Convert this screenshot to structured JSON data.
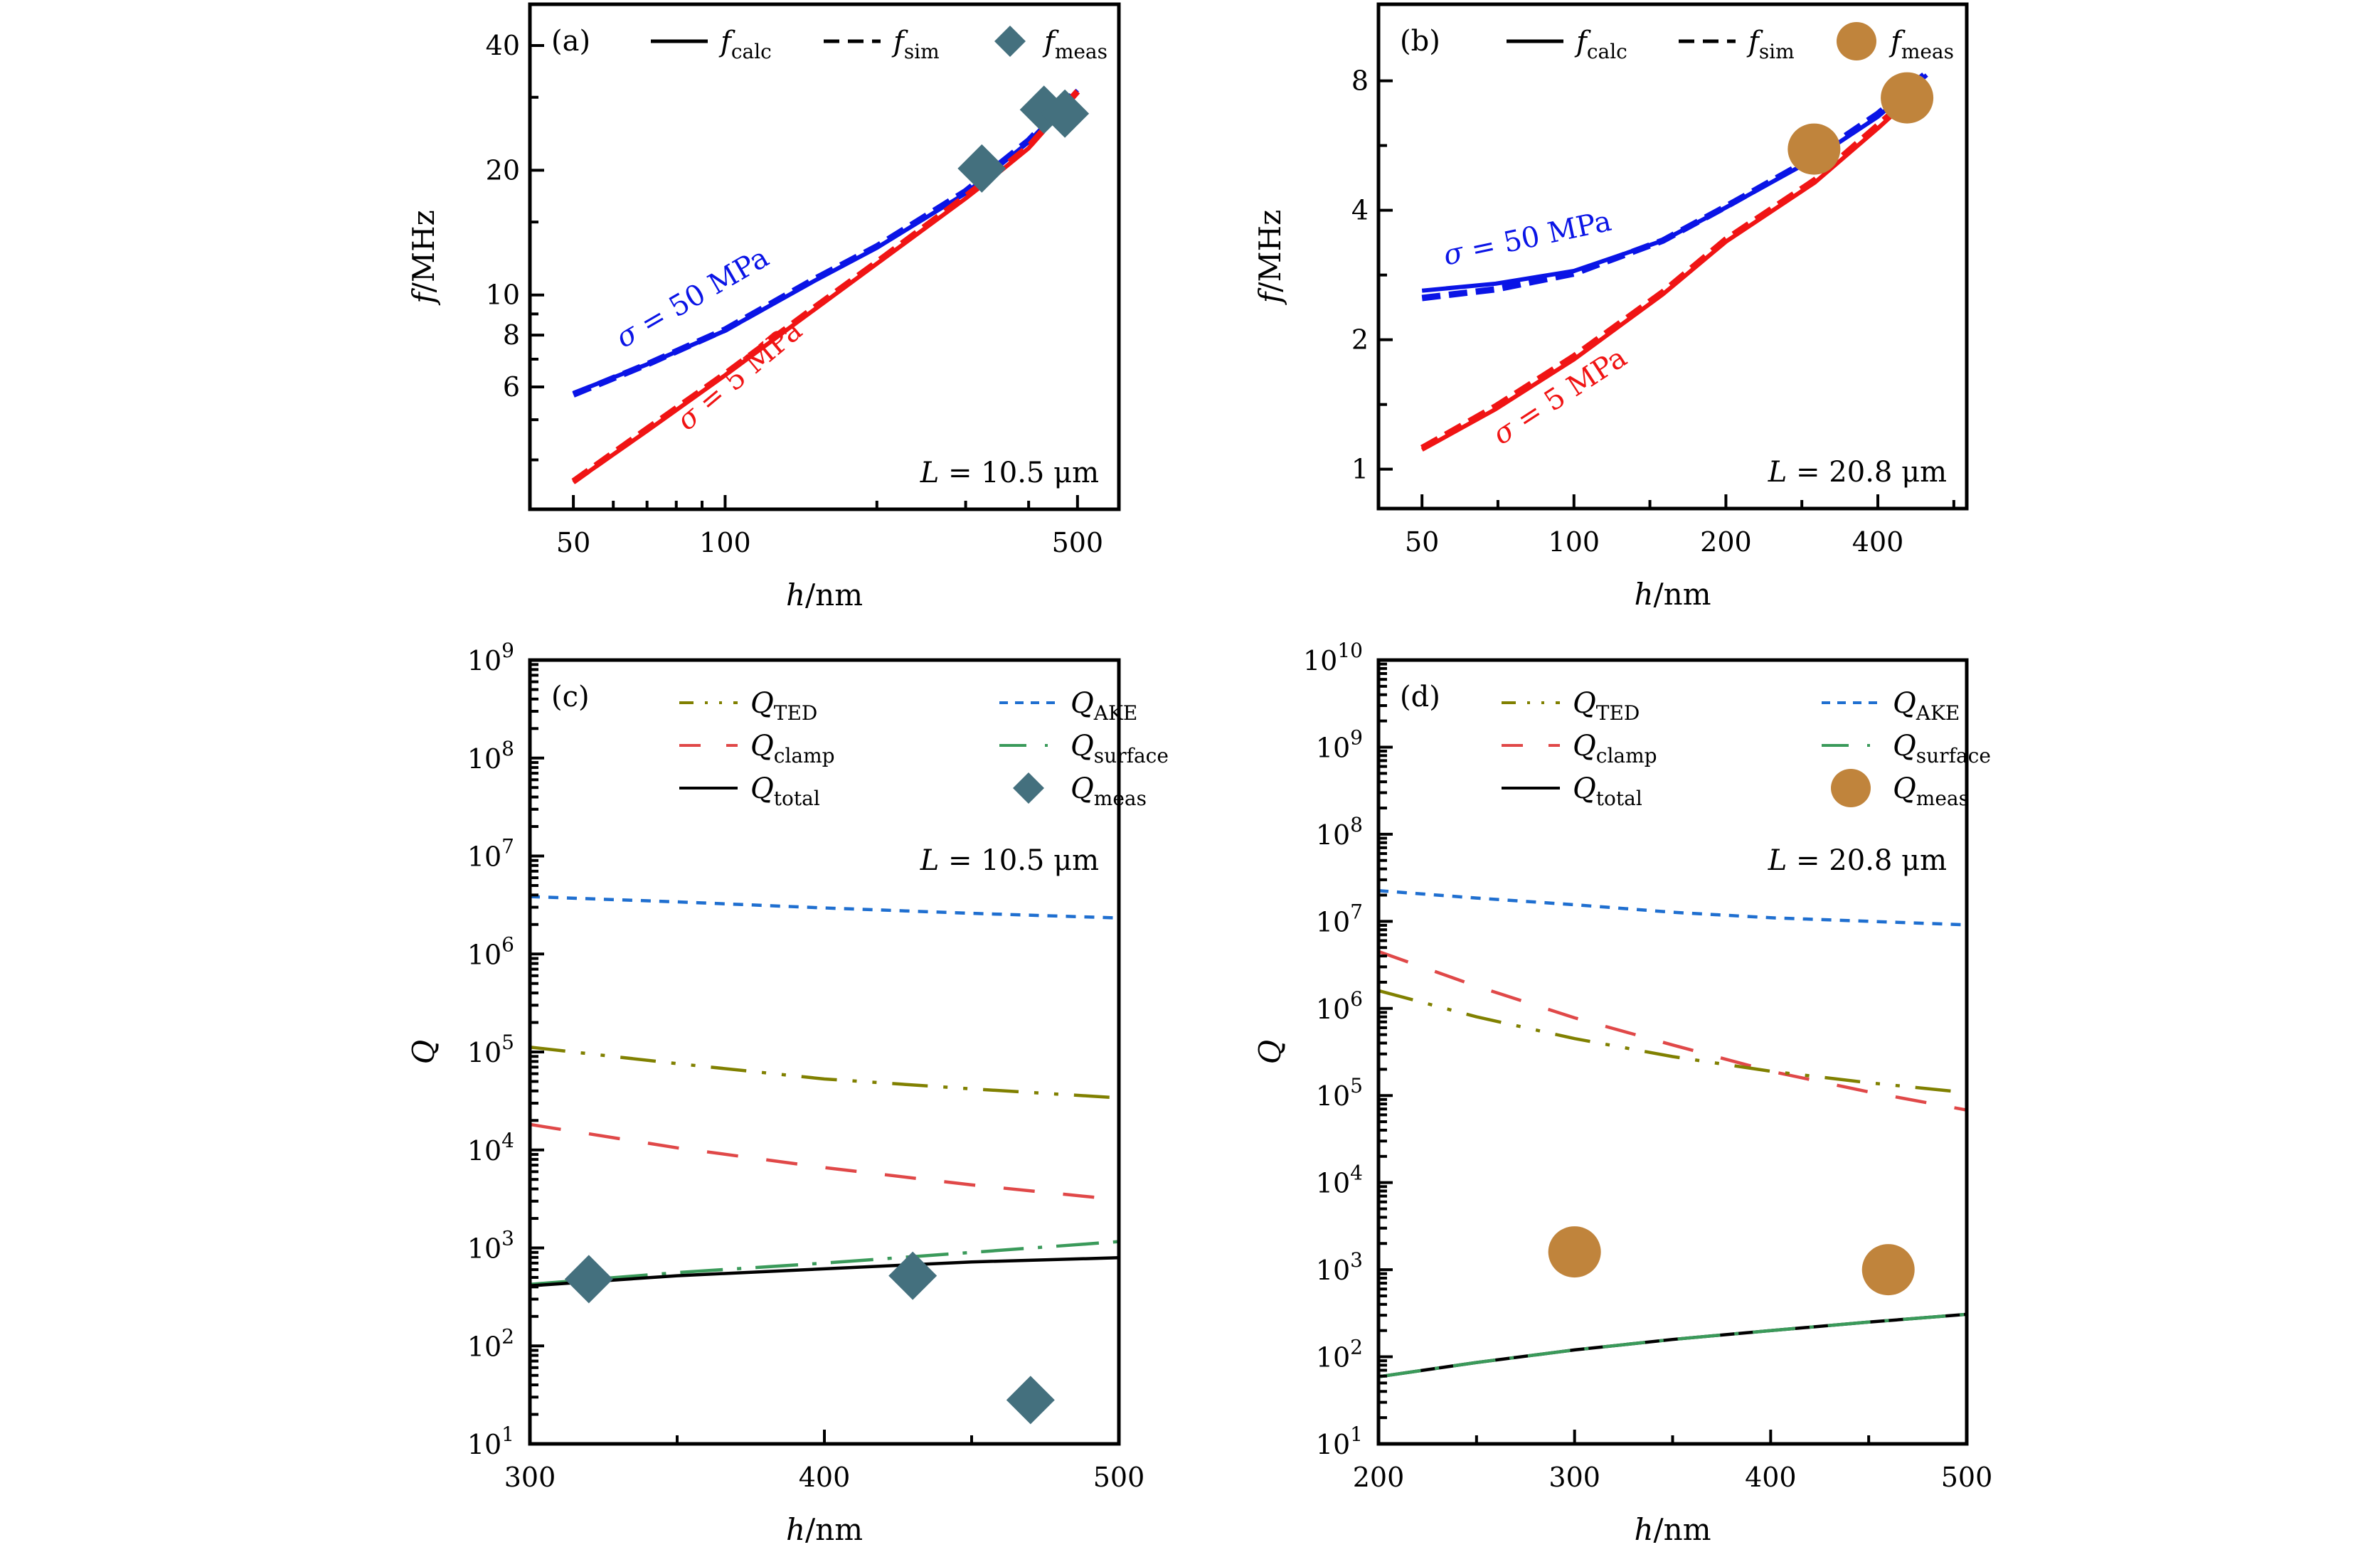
{
  "chart_data": [
    {
      "id": "a",
      "type": "line",
      "panel_label": "(a)",
      "xlabel": "h/nm",
      "ylabel": "f/MHz",
      "xscale": "log",
      "yscale": "log",
      "xlim": [
        41,
        604
      ],
      "ylim": [
        3.04,
        50.3
      ],
      "xticks": [
        50,
        100,
        500
      ],
      "xtick_labels": [
        "50",
        "100",
        "500"
      ],
      "xminor": [
        60,
        70,
        80,
        90,
        200,
        300,
        400
      ],
      "yticks": [
        6,
        8,
        10,
        20,
        40
      ],
      "ytick_labels": [
        "6",
        "8",
        "10",
        "20",
        "40"
      ],
      "yminor": [
        4,
        5,
        7,
        9,
        15,
        30
      ],
      "annotation_L": "L = 10.5 μm",
      "legend": [
        {
          "label": "f",
          "sub": "calc",
          "style": "solid",
          "color": "#000000"
        },
        {
          "label": "f",
          "sub": "sim",
          "style": "dashed",
          "color": "#000000"
        },
        {
          "label": "f",
          "sub": "meas",
          "style": "diamond",
          "color": "#44707e"
        }
      ],
      "series": [
        {
          "name": "σ = 50 MPa (calc)",
          "color": "#0a14e6",
          "style": "solid",
          "x": [
            50,
            70,
            100,
            150,
            200,
            300,
            350,
            400,
            500
          ],
          "y": [
            5.8,
            6.8,
            8.2,
            10.8,
            13.0,
            17.6,
            20.5,
            23.4,
            31.2
          ]
        },
        {
          "name": "σ = 50 MPa (sim)",
          "color": "#0a14e6",
          "style": "dashed",
          "x": [
            50,
            70,
            100,
            150,
            200,
            300,
            350,
            400,
            500
          ],
          "y": [
            5.75,
            6.8,
            8.25,
            10.9,
            13.1,
            17.8,
            20.7,
            23.6,
            31.3
          ]
        },
        {
          "name": "σ = 5 MPa (calc)",
          "color": "#f01414",
          "style": "solid",
          "x": [
            50,
            70,
            100,
            150,
            200,
            300,
            350,
            400,
            500
          ],
          "y": [
            3.53,
            4.7,
            6.4,
            9.2,
            11.9,
            17.1,
            19.8,
            22.6,
            30.8
          ]
        },
        {
          "name": "σ = 5 MPa (sim)",
          "color": "#f01414",
          "style": "dashed",
          "x": [
            50,
            70,
            100,
            150,
            200,
            300,
            350,
            400,
            500
          ],
          "y": [
            3.55,
            4.75,
            6.45,
            9.3,
            12.0,
            17.3,
            20.0,
            22.8,
            31.0
          ]
        }
      ],
      "markers": {
        "shape": "diamond",
        "color": "#44707e",
        "x": [
          323,
          429,
          472
        ],
        "y": [
          20.2,
          28.0,
          27.4
        ]
      },
      "curve_labels": [
        {
          "text": "σ = 50 MPa",
          "color": "#0a14e6"
        },
        {
          "text": "σ = 5 MPa",
          "color": "#f01414"
        }
      ]
    },
    {
      "id": "b",
      "type": "line",
      "panel_label": "(b)",
      "xlabel": "h/nm",
      "ylabel": "f/MHz",
      "xscale": "log",
      "yscale": "log",
      "xlim": [
        41,
        600
      ],
      "ylim": [
        0.81,
        12.05
      ],
      "xticks": [
        50,
        100,
        200,
        400
      ],
      "xtick_labels": [
        "50",
        "100",
        "200",
        "400"
      ],
      "xminor": [
        70.7,
        141.4,
        282.8,
        565.7
      ],
      "yticks": [
        1,
        2,
        4,
        8
      ],
      "ytick_labels": [
        "1",
        "2",
        "4",
        "8"
      ],
      "yminor": [
        1.414,
        2.828,
        5.657
      ],
      "annotation_L": "L = 20.8 μm",
      "legend": [
        {
          "label": "f",
          "sub": "calc",
          "style": "solid",
          "color": "#000000"
        },
        {
          "label": "f",
          "sub": "sim",
          "style": "dashed",
          "color": "#000000"
        },
        {
          "label": "f",
          "sub": "meas",
          "style": "circle",
          "color": "#c0843c"
        }
      ],
      "series": [
        {
          "name": "σ = 50 MPa (calc)",
          "color": "#0a14e6",
          "style": "solid",
          "x": [
            50,
            70,
            100,
            150,
            200,
            300,
            400,
            500
          ],
          "y": [
            2.6,
            2.7,
            2.89,
            3.4,
            4.06,
            5.28,
            6.6,
            8.25
          ]
        },
        {
          "name": "σ = 50 MPa (sim)",
          "color": "#0a14e6",
          "style": "dashed",
          "x": [
            50,
            70,
            100,
            150,
            200,
            300,
            400,
            500
          ],
          "y": [
            2.5,
            2.62,
            2.85,
            3.4,
            4.08,
            5.33,
            6.7,
            8.35
          ]
        },
        {
          "name": "σ = 5 MPa (calc)",
          "color": "#f01414",
          "style": "solid",
          "x": [
            50,
            70,
            100,
            150,
            200,
            300,
            400,
            500
          ],
          "y": [
            1.11,
            1.38,
            1.8,
            2.55,
            3.38,
            4.64,
            6.2,
            7.87
          ]
        },
        {
          "name": "σ = 5 MPa (sim)",
          "color": "#f01414",
          "style": "dashed",
          "x": [
            50,
            70,
            100,
            150,
            200,
            300,
            400,
            500
          ],
          "y": [
            1.12,
            1.4,
            1.83,
            2.58,
            3.42,
            4.7,
            6.3,
            7.95
          ]
        }
      ],
      "markers": {
        "shape": "circle",
        "color": "#c0843c",
        "x": [
          299,
          457
        ],
        "y": [
          5.55,
          7.3
        ]
      },
      "curve_labels": [
        {
          "text": "σ = 50 MPa",
          "color": "#0a14e6"
        },
        {
          "text": "σ = 5 MPa",
          "color": "#f01414"
        }
      ]
    },
    {
      "id": "c",
      "type": "line",
      "panel_label": "(c)",
      "xlabel": "h/nm",
      "ylabel": "Q",
      "xscale": "linear",
      "yscale": "log",
      "xlim": [
        300,
        500
      ],
      "ylim": [
        10,
        1000000000.0
      ],
      "xticks": [
        300,
        400,
        500
      ],
      "xtick_labels": [
        "300",
        "400",
        "500"
      ],
      "xminor": [
        350,
        450
      ],
      "ytick_exponents": [
        1,
        2,
        3,
        4,
        5,
        6,
        7,
        8,
        9
      ],
      "annotation_L": "L = 10.5 μm",
      "legend": [
        {
          "label": "Q",
          "sub": "TED",
          "style": "dashdotdot",
          "color": "#808000"
        },
        {
          "label": "Q",
          "sub": "AKE",
          "style": "shortdash",
          "color": "#1f6fd0"
        },
        {
          "label": "Q",
          "sub": "clamp",
          "style": "longdash",
          "color": "#e04848"
        },
        {
          "label": "Q",
          "sub": "surface",
          "style": "dashdot",
          "color": "#3a9a5a"
        },
        {
          "label": "Q",
          "sub": "total",
          "style": "solid",
          "color": "#000000"
        },
        {
          "label": "Q",
          "sub": "meas",
          "style": "diamond",
          "color": "#44707e"
        }
      ],
      "series": [
        {
          "name": "Q_AKE",
          "color": "#1f6fd0",
          "style": "shortdash",
          "x": [
            300,
            350,
            400,
            450,
            500
          ],
          "y": [
            3850000.0,
            3400000.0,
            2950000.0,
            2600000.0,
            2330000.0
          ]
        },
        {
          "name": "Q_TED",
          "color": "#808000",
          "style": "dashdotdot",
          "x": [
            300,
            350,
            400,
            450,
            500
          ],
          "y": [
            112000.0,
            76000.0,
            53000.0,
            42000.0,
            34000.0
          ]
        },
        {
          "name": "Q_clamp",
          "color": "#e04848",
          "style": "longdash",
          "x": [
            300,
            350,
            400,
            450,
            500
          ],
          "y": [
            18200.0,
            10500.0,
            6600.0,
            4400.0,
            3100.0
          ]
        },
        {
          "name": "Q_surface",
          "color": "#3a9a5a",
          "style": "dashdot",
          "x": [
            300,
            350,
            400,
            450,
            500
          ],
          "y": [
            425,
            560,
            700,
            900,
            1160
          ]
        },
        {
          "name": "Q_total",
          "color": "#000000",
          "style": "solid",
          "x": [
            300,
            350,
            400,
            450,
            500
          ],
          "y": [
            410,
            520,
            612,
            720,
            794
          ]
        }
      ],
      "markers": {
        "shape": "diamond",
        "color": "#44707e",
        "x": [
          320,
          430,
          470
        ],
        "y": [
          480,
          520,
          28
        ]
      }
    },
    {
      "id": "d",
      "type": "line",
      "panel_label": "(d)",
      "xlabel": "h/nm",
      "ylabel": "Q",
      "xscale": "linear",
      "yscale": "log",
      "xlim": [
        200,
        500
      ],
      "ylim": [
        10,
        10000000000.0
      ],
      "xticks": [
        200,
        300,
        400,
        500
      ],
      "xtick_labels": [
        "200",
        "300",
        "400",
        "500"
      ],
      "xminor": [
        250,
        350,
        450
      ],
      "ytick_exponents": [
        1,
        2,
        3,
        4,
        5,
        6,
        7,
        8,
        9,
        10
      ],
      "annotation_L": "L = 20.8 μm",
      "legend": [
        {
          "label": "Q",
          "sub": "TED",
          "style": "dashdotdot",
          "color": "#808000"
        },
        {
          "label": "Q",
          "sub": "AKE",
          "style": "shortdash",
          "color": "#1f6fd0"
        },
        {
          "label": "Q",
          "sub": "clamp",
          "style": "longdash",
          "color": "#e04848"
        },
        {
          "label": "Q",
          "sub": "surface",
          "style": "dashdot",
          "color": "#3a9a5a"
        },
        {
          "label": "Q",
          "sub": "total",
          "style": "solid",
          "color": "#000000"
        },
        {
          "label": "Q",
          "sub": "meas",
          "style": "circle",
          "color": "#c0843c"
        }
      ],
      "series": [
        {
          "name": "Q_AKE",
          "color": "#1f6fd0",
          "style": "shortdash",
          "x": [
            200,
            250,
            300,
            350,
            400,
            450,
            500
          ],
          "y": [
            22500000.0,
            18500000.0,
            15500000.0,
            12700000.0,
            11000000.0,
            10000000.0,
            9100000.0
          ]
        },
        {
          "name": "Q_clamp",
          "color": "#e04848",
          "style": "longdash",
          "x": [
            200,
            250,
            300,
            350,
            400,
            450,
            500
          ],
          "y": [
            4500000.0,
            1800000.0,
            780000.0,
            380000.0,
            190000.0,
            110000.0,
            68000.0
          ]
        },
        {
          "name": "Q_TED",
          "color": "#808000",
          "style": "dashdotdot",
          "x": [
            200,
            250,
            300,
            350,
            400,
            450,
            500
          ],
          "y": [
            1600000.0,
            800000.0,
            450000.0,
            280000.0,
            190000.0,
            140000.0,
            108000.0
          ]
        },
        {
          "name": "Q_total",
          "color": "#000000",
          "style": "solid",
          "x": [
            200,
            250,
            300,
            350,
            400,
            450,
            500
          ],
          "y": [
            59,
            86,
            120,
            158,
            200,
            250,
            307
          ]
        },
        {
          "name": "Q_surface",
          "color": "#3a9a5a",
          "style": "dashdot",
          "x": [
            200,
            250,
            300,
            350,
            400,
            450,
            500
          ],
          "y": [
            59,
            86,
            120,
            158,
            200,
            250,
            307
          ]
        }
      ],
      "markers": {
        "shape": "circle",
        "color": "#c0843c",
        "x": [
          300,
          460
        ],
        "y": [
          1600,
          1000
        ]
      }
    }
  ]
}
